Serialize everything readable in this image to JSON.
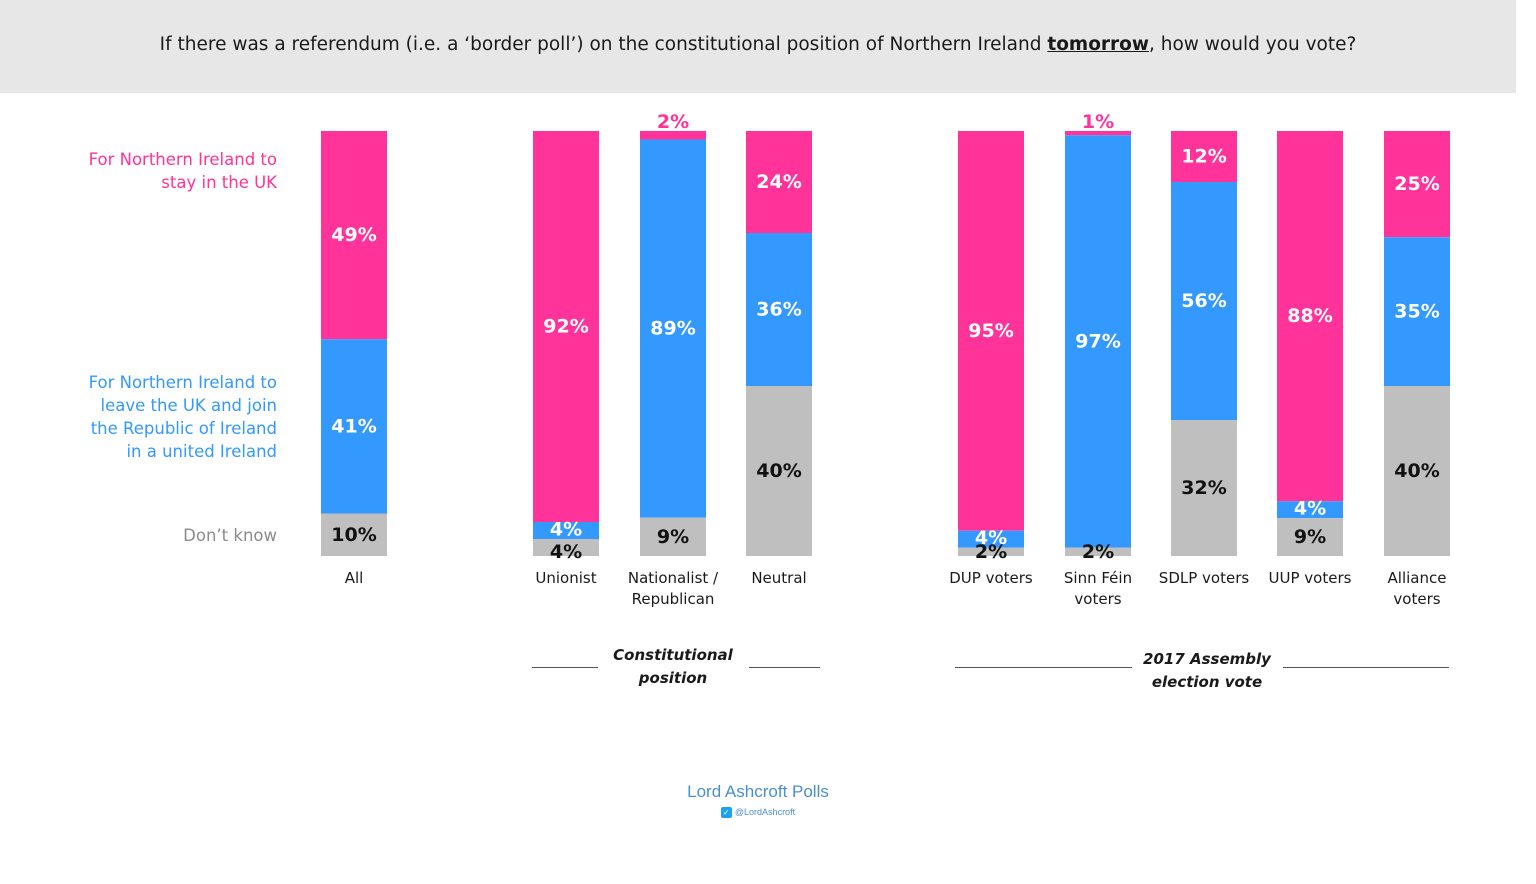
{
  "title": {
    "prefix": "If there was a referendum (i.e. a ‘border poll’) on the constitutional position of Northern Ireland ",
    "emphasis": "tomorrow",
    "suffix": ", how would you vote?"
  },
  "legend": {
    "stay": [
      "For Northern Ireland to",
      "stay in the UK"
    ],
    "leave": [
      "For Northern Ireland to",
      "leave the UK and join",
      "the Republic of Ireland",
      "in a united Ireland"
    ],
    "dont_know": "Don’t know"
  },
  "colors": {
    "stay": "#ff3399",
    "leave": "#3399ff",
    "dont_know": "#bfbfbf",
    "axis": "#555555"
  },
  "chart_data": {
    "type": "bar",
    "stacked": true,
    "categories": [
      "All",
      "Unionist",
      "Nationalist / Republican",
      "Neutral",
      "DUP voters",
      "Sinn Féin voters",
      "SDLP voters",
      "UUP voters",
      "Alliance voters"
    ],
    "category_lines": [
      [
        "All"
      ],
      [
        "Unionist"
      ],
      [
        "Nationalist /",
        "Republican"
      ],
      [
        "Neutral"
      ],
      [
        "DUP voters"
      ],
      [
        "Sinn Féin",
        "voters"
      ],
      [
        "SDLP voters"
      ],
      [
        "UUP voters"
      ],
      [
        "Alliance",
        "voters"
      ]
    ],
    "series": [
      {
        "name": "For Northern Ireland to stay in the UK",
        "key": "stay",
        "values": [
          49,
          92,
          2,
          24,
          95,
          1,
          12,
          88,
          25
        ]
      },
      {
        "name": "For Northern Ireland to leave the UK and join the Republic of Ireland in a united Ireland",
        "key": "leave",
        "values": [
          41,
          4,
          89,
          36,
          4,
          97,
          56,
          4,
          35
        ]
      },
      {
        "name": "Don’t know",
        "key": "dont_know",
        "values": [
          10,
          4,
          9,
          40,
          2,
          2,
          32,
          9,
          40
        ]
      }
    ],
    "unit": "%",
    "ylim": [
      0,
      100
    ],
    "groups": [
      {
        "label": [
          "Constitutional",
          "position"
        ],
        "categories": [
          "Unionist",
          "Nationalist / Republican",
          "Neutral"
        ]
      },
      {
        "label": [
          "2017 Assembly",
          "election vote"
        ],
        "categories": [
          "DUP voters",
          "Sinn Féin voters",
          "SDLP voters",
          "UUP voters",
          "Alliance voters"
        ]
      }
    ]
  },
  "footer": {
    "brand": "Lord Ashcroft Polls",
    "handle": "@LordAshcroft"
  }
}
